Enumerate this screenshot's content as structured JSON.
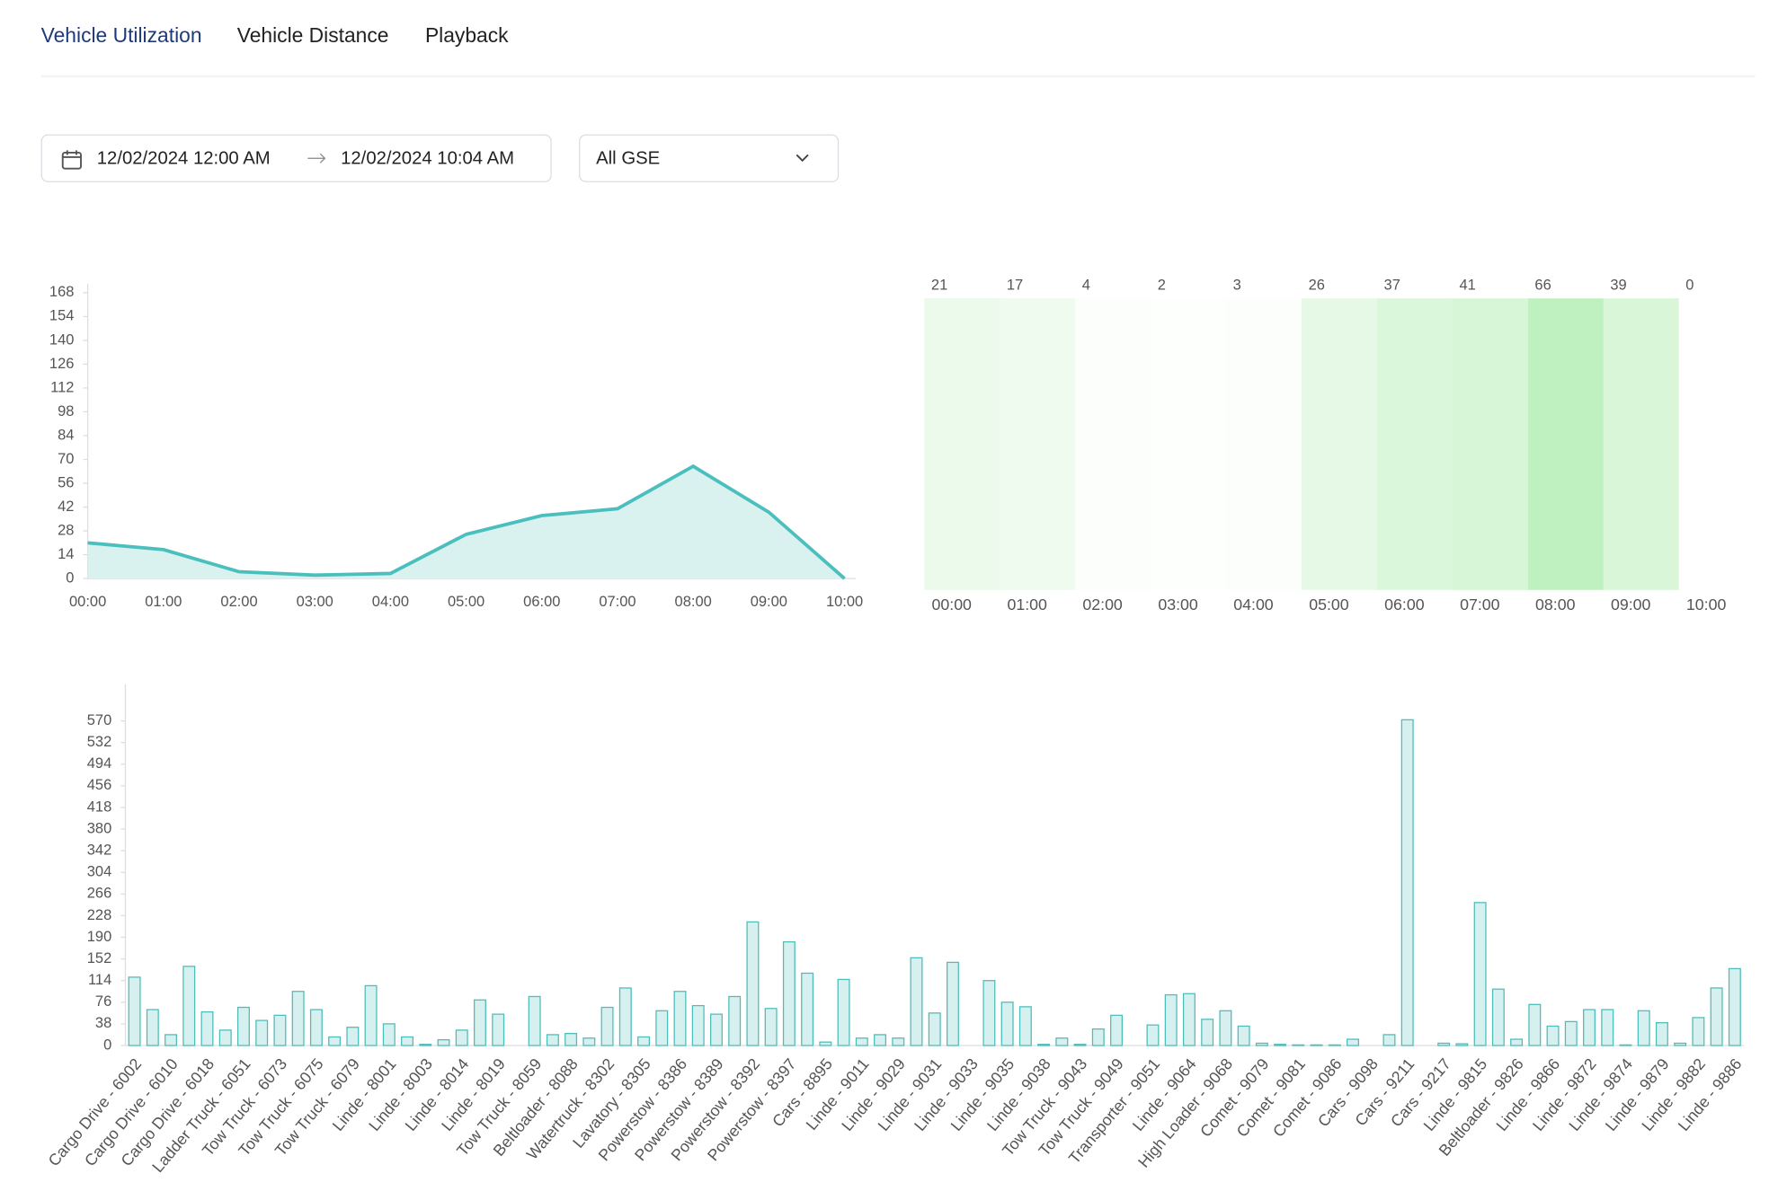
{
  "tabs": [
    "Vehicle Utilization",
    "Vehicle Distance",
    "Playback"
  ],
  "filters": {
    "start": "12/02/2024 12:00 AM",
    "end": "12/02/2024 10:04 AM",
    "group": "All GSE"
  },
  "chart_data": [
    {
      "type": "line",
      "categories": [
        "00:00",
        "01:00",
        "02:00",
        "03:00",
        "04:00",
        "05:00",
        "06:00",
        "07:00",
        "08:00",
        "09:00",
        "10:00"
      ],
      "values": [
        21,
        17,
        4,
        2,
        3,
        26,
        37,
        41,
        66,
        39,
        0
      ],
      "color": "#4bbfbd",
      "area_color": "#d9f1ef",
      "ylim": [
        0,
        168
      ],
      "yticks": [
        0,
        14,
        28,
        42,
        56,
        70,
        84,
        98,
        112,
        126,
        140,
        154,
        168
      ]
    },
    {
      "type": "heatmap",
      "categories": [
        "00:00",
        "01:00",
        "02:00",
        "03:00",
        "04:00",
        "05:00",
        "06:00",
        "07:00",
        "08:00",
        "09:00",
        "10:00"
      ],
      "values": [
        21,
        17,
        4,
        2,
        3,
        26,
        37,
        41,
        66,
        39,
        0
      ],
      "color": "#bff0bf"
    },
    {
      "type": "bar",
      "color": "#d5f0ee",
      "edge_color": "#4dbdba",
      "categories": [
        "Cargo Drive - 6002",
        null,
        "Cargo Drive - 6010",
        null,
        "Cargo Drive - 6018",
        null,
        "Ladder Truck - 6051",
        null,
        "Tow Truck - 6073",
        null,
        "Tow Truck - 6075",
        null,
        "Tow Truck - 6079",
        null,
        "Linde - 8001",
        null,
        "Linde - 8003",
        null,
        "Linde - 8014",
        null,
        "Linde - 8019",
        null,
        "Tow Truck - 8059",
        null,
        "Beltloader - 8088",
        null,
        "Watertruck - 8302",
        null,
        "Lavatory - 8305",
        null,
        "Powerstow - 8386",
        null,
        "Powerstow - 8389",
        null,
        "Powerstow - 8392",
        null,
        "Powerstow - 8397",
        null,
        "Cars - 8895",
        null,
        "Linde - 9011",
        null,
        "Linde - 9029",
        null,
        "Linde - 9031",
        null,
        "Linde - 9033",
        null,
        "Linde - 9035",
        null,
        "Linde - 9038",
        null,
        "Tow Truck - 9043",
        null,
        "Tow Truck - 9049",
        null,
        "Transporter - 9051",
        null,
        "Linde - 9064",
        null,
        "High Loader - 9068",
        null,
        "Comet - 9079",
        null,
        "Comet - 9081",
        null,
        "Comet - 9086",
        null,
        "Cars - 9098",
        null,
        "Cars - 9211",
        null,
        "Cars - 9217",
        null,
        "Linde - 9815",
        null,
        "Beltloader - 9826",
        null,
        "Linde - 9866",
        null,
        "Linde - 9872",
        null,
        "Linde - 9874",
        null,
        "Linde - 9879",
        null,
        "Linde - 9882",
        null,
        "Linde - 9886"
      ],
      "values": [
        120,
        63,
        19,
        139,
        59,
        27,
        67,
        44,
        53,
        95,
        63,
        15,
        32,
        105,
        38,
        15,
        2,
        10,
        27,
        80,
        55,
        0,
        86,
        19,
        21,
        13,
        67,
        101,
        15,
        61,
        95,
        70,
        55,
        86,
        217,
        65,
        182,
        127,
        6,
        116,
        13,
        19,
        13,
        154,
        57,
        146,
        0,
        114,
        76,
        68,
        2,
        13,
        2,
        29,
        53,
        0,
        36,
        89,
        91,
        46,
        61,
        34,
        4,
        2,
        1,
        1,
        1,
        11,
        0,
        19,
        572,
        0,
        4,
        3,
        251,
        99,
        11,
        72,
        34,
        42,
        63,
        63,
        1,
        61,
        40,
        4,
        49,
        101,
        135
      ],
      "ylim": [
        0,
        600
      ],
      "yticks": [
        0,
        38,
        76,
        114,
        152,
        190,
        228,
        266,
        304,
        342,
        380,
        418,
        456,
        494,
        532,
        570
      ]
    }
  ]
}
